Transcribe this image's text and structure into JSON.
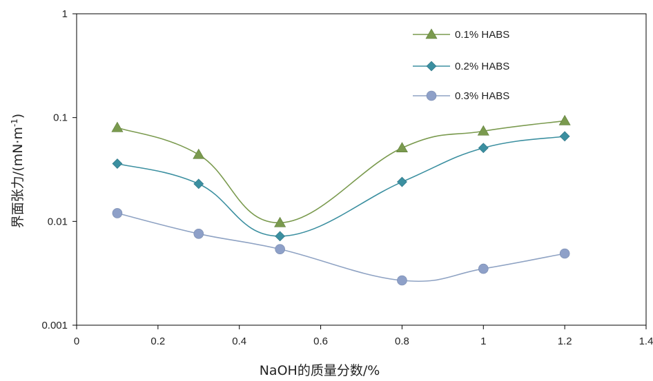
{
  "chart_data": {
    "type": "line",
    "title": "",
    "xlabel": "NaOH的质量分数/%",
    "ylabel": "界面张力/(mN·m",
    "ylabel_sup": "-1",
    "ylabel_close": ")",
    "xlim": [
      0,
      1.4
    ],
    "ylim": [
      0.001,
      1
    ],
    "yscale": "log",
    "x_ticks": [
      0,
      0.2,
      0.4,
      0.6,
      0.8,
      1,
      1.2,
      1.4
    ],
    "x_tick_labels": [
      "0",
      "0.2",
      "0.4",
      "0.6",
      "0.8",
      "1",
      "1.2",
      "1.4"
    ],
    "y_ticks": [
      0.001,
      0.01,
      0.1,
      1
    ],
    "y_tick_labels": [
      "0.001",
      "0.01",
      "0.1",
      "1"
    ],
    "grid": false,
    "legend_position": "top-right",
    "x": [
      0.1,
      0.3,
      0.5,
      0.8,
      1.0,
      1.2
    ],
    "series": [
      {
        "name": "0.1% HABS",
        "marker": "triangle",
        "color": "#7a9a4e",
        "values": [
          0.08,
          0.044,
          0.0097,
          0.051,
          0.074,
          0.093
        ]
      },
      {
        "name": "0.2% HABS",
        "marker": "diamond",
        "color": "#3b8fa0",
        "values": [
          0.036,
          0.023,
          0.0072,
          0.024,
          0.051,
          0.066
        ]
      },
      {
        "name": "0.3% HABS",
        "marker": "circle",
        "line_color": "#8ea2c3",
        "color": "#8ea0c8",
        "values": [
          0.012,
          0.0076,
          0.0054,
          0.0027,
          0.0035,
          0.0049
        ]
      }
    ]
  }
}
